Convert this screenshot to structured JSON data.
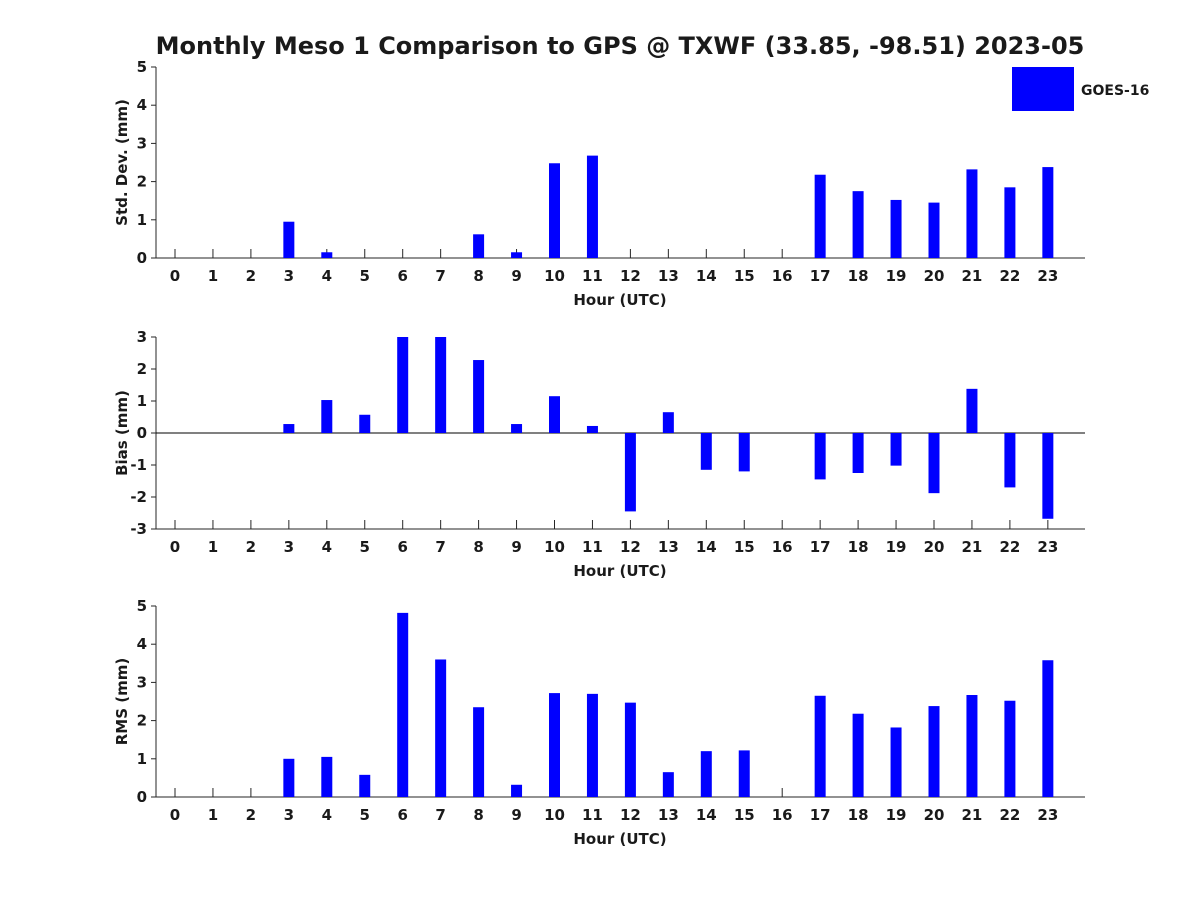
{
  "chart_data": {
    "title": "Monthly Meso 1 Comparison to GPS @ TXWF (33.85, -98.51) 2023-05",
    "legend": {
      "label": "GOES-16",
      "color": "#0000ff",
      "placement": "top-right"
    },
    "grid": false,
    "panels": [
      {
        "type": "bar",
        "ylabel": "Std. Dev. (mm)",
        "xlabel": "Hour (UTC)",
        "ylim": [
          0,
          5
        ],
        "yticks": [
          0,
          1,
          2,
          3,
          4,
          5
        ],
        "categories": [
          0,
          1,
          2,
          3,
          4,
          5,
          6,
          7,
          8,
          9,
          10,
          11,
          12,
          13,
          14,
          15,
          16,
          17,
          18,
          19,
          20,
          21,
          22,
          23
        ],
        "series": [
          {
            "name": "GOES-16",
            "values": [
              0,
              0,
              0,
              0.95,
              0.15,
              0,
              0,
              0,
              0.62,
              0.15,
              2.48,
              2.68,
              0,
              0,
              0,
              0,
              0,
              2.18,
              1.75,
              1.52,
              1.45,
              2.32,
              1.85,
              2.38
            ]
          }
        ]
      },
      {
        "type": "bar",
        "ylabel": "Bias (mm)",
        "xlabel": "Hour (UTC)",
        "ylim": [
          -3,
          3
        ],
        "yticks": [
          -3,
          -2,
          -1,
          0,
          1,
          2,
          3
        ],
        "categories": [
          0,
          1,
          2,
          3,
          4,
          5,
          6,
          7,
          8,
          9,
          10,
          11,
          12,
          13,
          14,
          15,
          16,
          17,
          18,
          19,
          20,
          21,
          22,
          23
        ],
        "series": [
          {
            "name": "GOES-16",
            "values": [
              0,
              0,
              0,
              0.28,
              1.03,
              0.57,
              3.0,
              3.0,
              2.28,
              0.28,
              1.15,
              0.22,
              -2.45,
              0.65,
              -1.15,
              -1.2,
              0,
              -1.45,
              -1.25,
              -1.02,
              -1.88,
              1.38,
              -1.7,
              -2.68
            ]
          }
        ]
      },
      {
        "type": "bar",
        "ylabel": "RMS (mm)",
        "xlabel": "Hour (UTC)",
        "ylim": [
          0,
          5
        ],
        "yticks": [
          0,
          1,
          2,
          3,
          4,
          5
        ],
        "categories": [
          0,
          1,
          2,
          3,
          4,
          5,
          6,
          7,
          8,
          9,
          10,
          11,
          12,
          13,
          14,
          15,
          16,
          17,
          18,
          19,
          20,
          21,
          22,
          23
        ],
        "series": [
          {
            "name": "GOES-16",
            "values": [
              0,
              0,
              0,
              1.0,
              1.05,
              0.58,
              4.82,
              3.6,
              2.35,
              0.32,
              2.72,
              2.7,
              2.47,
              0.65,
              1.2,
              1.22,
              0,
              2.65,
              2.18,
              1.82,
              2.38,
              2.67,
              2.52,
              3.58
            ]
          }
        ]
      }
    ]
  }
}
